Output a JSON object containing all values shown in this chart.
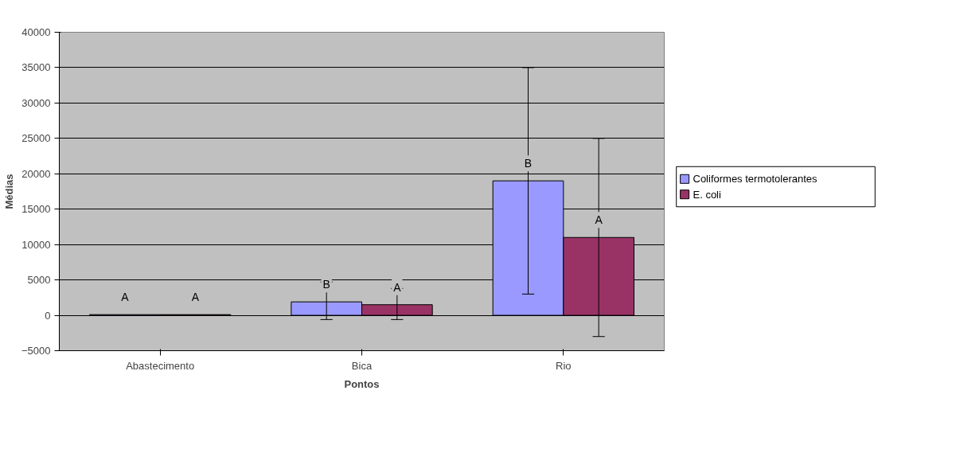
{
  "chart_data": {
    "type": "bar",
    "xlabel": "Pontos",
    "ylabel": "Médias",
    "categories": [
      "Abastecimento",
      "Bica",
      "Rio"
    ],
    "series": [
      {
        "name": "Coliformes termotolerantes",
        "color": "#9999ff",
        "values": [
          100,
          1900,
          19000
        ],
        "errors": [
          null,
          [
            -600,
            4700
          ],
          [
            3000,
            35000
          ]
        ],
        "value_labels": [
          "A",
          "B",
          "B"
        ]
      },
      {
        "name": "E. coli",
        "color": "#993366",
        "values": [
          100,
          1500,
          11000
        ],
        "errors": [
          null,
          [
            -600,
            3800
          ],
          [
            -3000,
            25000
          ]
        ],
        "value_labels": [
          "A",
          "A",
          "A"
        ]
      }
    ],
    "ylim": [
      -5000,
      40000
    ],
    "yticks": [
      -5000,
      0,
      5000,
      10000,
      15000,
      20000,
      25000,
      30000,
      35000,
      40000
    ],
    "grid": "y",
    "legend": "right"
  }
}
